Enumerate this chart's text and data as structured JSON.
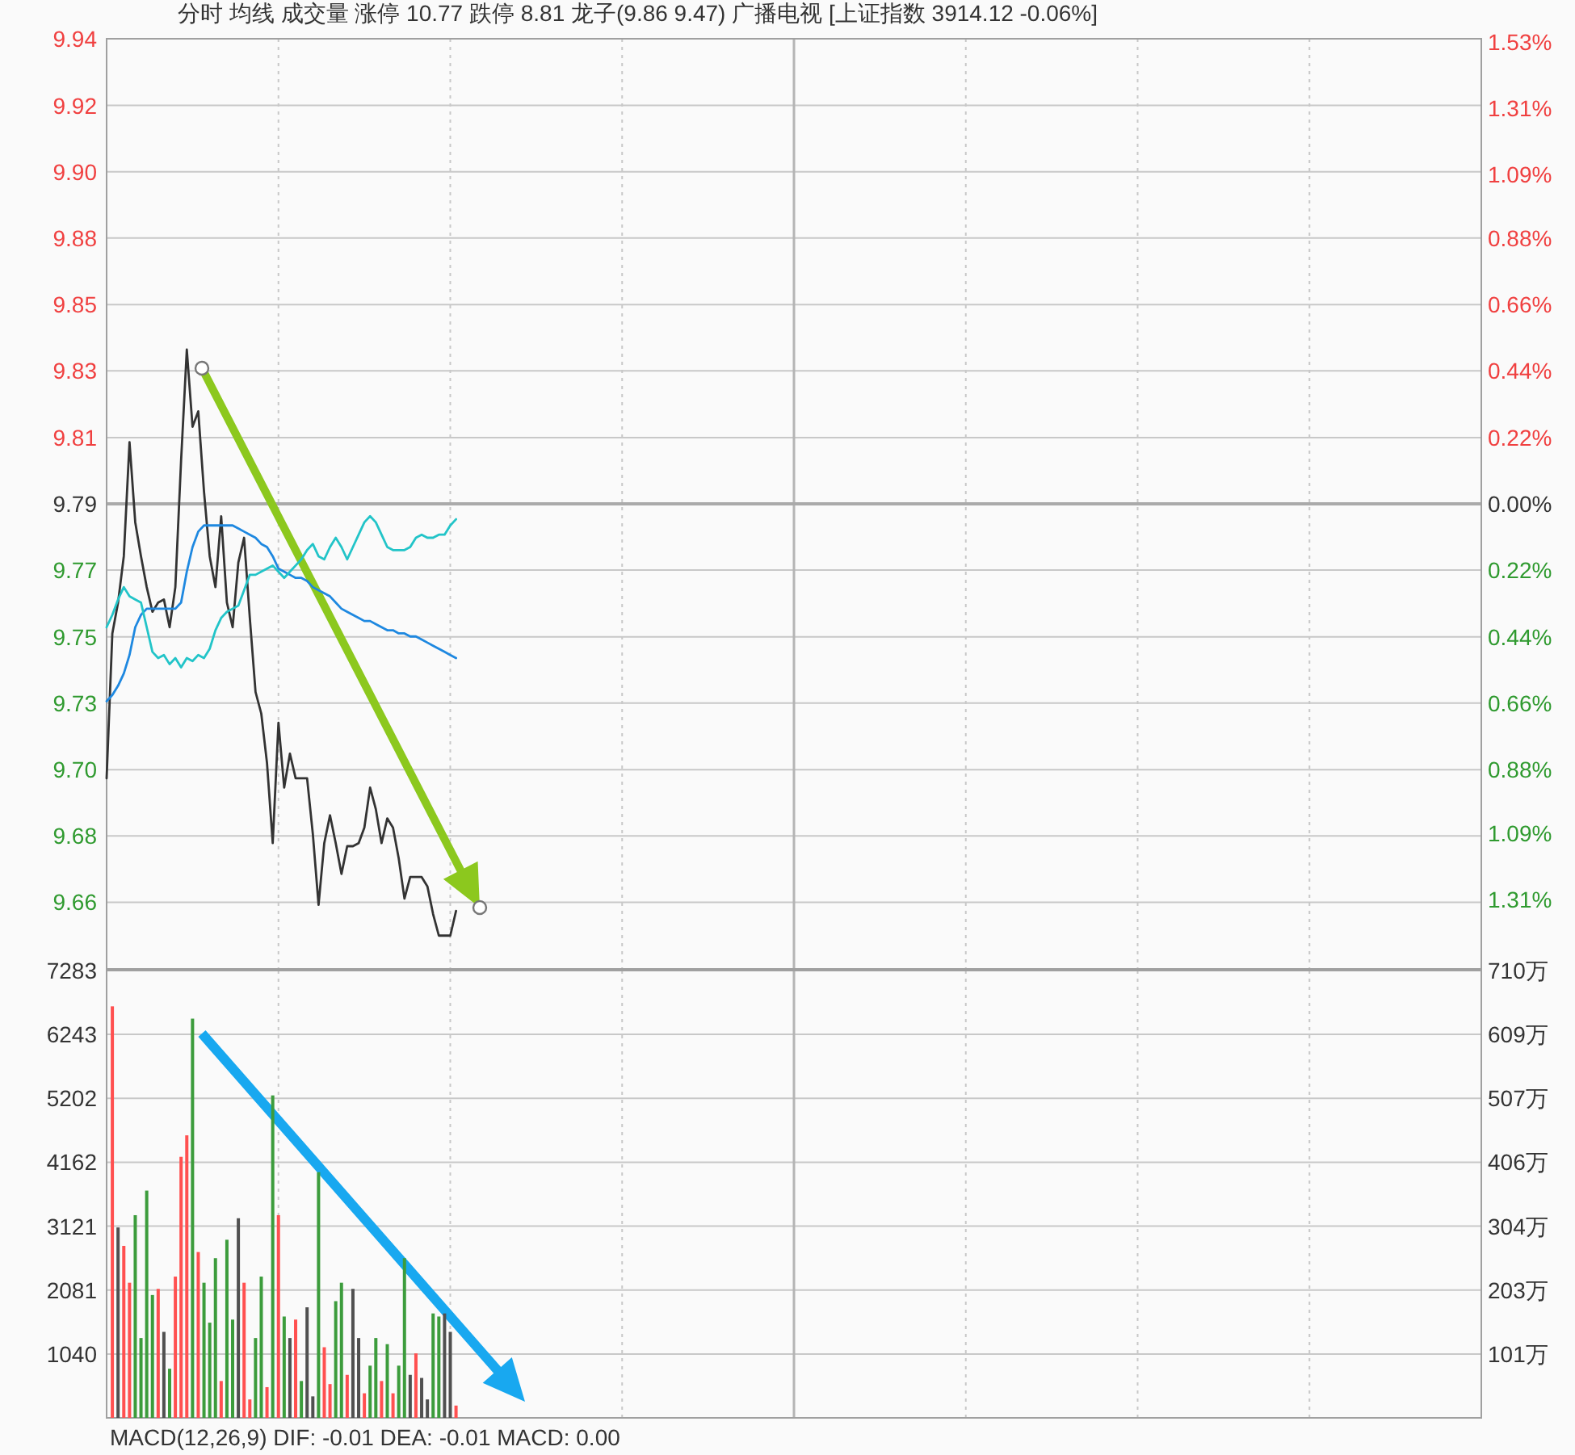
{
  "chart_data": [
    {
      "type": "line",
      "title": "分时  均线  成交量  涨停 10.77  跌停 8.81  龙子(9.86 9.47)  广播电视  [上证指数 3914.12 -0.06%]",
      "categories": [
        null,
        null,
        null,
        null,
        null,
        null,
        null,
        null,
        null,
        null,
        null,
        null,
        null,
        null,
        null,
        null,
        null,
        null,
        null,
        null,
        null,
        null,
        null,
        null,
        null,
        null,
        null,
        null,
        null,
        null,
        null,
        null,
        null,
        null,
        null,
        null,
        null,
        null,
        null,
        null,
        null,
        null,
        null,
        null,
        null,
        null,
        null,
        null,
        null,
        null,
        null,
        null,
        null,
        null,
        null,
        null,
        null,
        null,
        null,
        null,
        null,
        null,
        null,
        null,
        null,
        null,
        null,
        null,
        null,
        null,
        null,
        null,
        null,
        null,
        null,
        null,
        null,
        null,
        null,
        null,
        null,
        null,
        null,
        null,
        null,
        null,
        null,
        null,
        null,
        null,
        null,
        null,
        null,
        null,
        null,
        null,
        null,
        null,
        null,
        null,
        null,
        null,
        null,
        null,
        null,
        null,
        null,
        null,
        null,
        null,
        null,
        null,
        null,
        null,
        null,
        null,
        null,
        null,
        null,
        null,
        null,
        null,
        null,
        null,
        null,
        null,
        null,
        null,
        null,
        null,
        null,
        null,
        null,
        null,
        null,
        null,
        null,
        null,
        null,
        null,
        null,
        null,
        null,
        null,
        null,
        null,
        null,
        null,
        null,
        null,
        null,
        null,
        null,
        null,
        null,
        null,
        null,
        null,
        null,
        null,
        null,
        null,
        null,
        null,
        null,
        null,
        null,
        null,
        null,
        null,
        null,
        null,
        null,
        null,
        null,
        null,
        null,
        null,
        null,
        null,
        null,
        null,
        null,
        null,
        null,
        null,
        null,
        null,
        null,
        null,
        null,
        null,
        null,
        null,
        null,
        null,
        null,
        null,
        null,
        null,
        null,
        null,
        null,
        null,
        null,
        null,
        null,
        null,
        null,
        null,
        null,
        null,
        null,
        null,
        null,
        null,
        null,
        null,
        null,
        null,
        null,
        null,
        null,
        null,
        null,
        null,
        null,
        null,
        null,
        null,
        null,
        null,
        null,
        null,
        null,
        null,
        null,
        null,
        null,
        null,
        null
      ],
      "series": [
        {
          "color": "#333333",
          "values": [
            9.701,
            9.748,
            9.758,
            9.773,
            9.81,
            9.784,
            9.773,
            9.763,
            9.755,
            9.758,
            9.759,
            9.75,
            9.763,
            9.804,
            9.84,
            9.815,
            9.82,
            9.794,
            9.773,
            9.763,
            9.786,
            9.758,
            9.75,
            9.771,
            9.779,
            9.753,
            9.729,
            9.722,
            9.706,
            9.68,
            9.719,
            9.698,
            9.709,
            9.701,
            9.701,
            9.701,
            9.683,
            9.66,
            9.68,
            9.689,
            9.68,
            9.67,
            9.679,
            9.679,
            9.68,
            9.685,
            9.698,
            9.691,
            9.68,
            9.688,
            9.685,
            9.675,
            9.662,
            9.669,
            9.669,
            9.669,
            9.666,
            9.657,
            9.65,
            9.65,
            9.65,
            9.658,
            null,
            null,
            null,
            null,
            null,
            null,
            null,
            null,
            null,
            null,
            null,
            null,
            null,
            null,
            null,
            null,
            null,
            null,
            null,
            null,
            null,
            null,
            null,
            null,
            null,
            null,
            null,
            null,
            null,
            null,
            null,
            null,
            null,
            null,
            null,
            null,
            null,
            null,
            null,
            null,
            null,
            null,
            null,
            null,
            null,
            null,
            null,
            null,
            null,
            null,
            null,
            null,
            null,
            null,
            null,
            null,
            null,
            null,
            null,
            null,
            null,
            null,
            null,
            null,
            null,
            null,
            null,
            null,
            null,
            null,
            null,
            null,
            null,
            null,
            null,
            null,
            null,
            null,
            null,
            null,
            null,
            null,
            null,
            null,
            null,
            null,
            null,
            null,
            null,
            null,
            null,
            null,
            null,
            null,
            null,
            null,
            null,
            null,
            null,
            null,
            null,
            null,
            null,
            null,
            null,
            null,
            null,
            null,
            null,
            null,
            null,
            null,
            null,
            null,
            null,
            null,
            null,
            null,
            null,
            null,
            null,
            null,
            null,
            null,
            null,
            null,
            null,
            null,
            null,
            null,
            null,
            null,
            null,
            null,
            null,
            null,
            null,
            null,
            null,
            null,
            null,
            null,
            null,
            null,
            null,
            null,
            null,
            null,
            null,
            null,
            null,
            null,
            null,
            null,
            null,
            null,
            null,
            null,
            null,
            null,
            null,
            null,
            null,
            null,
            null,
            null,
            null,
            null,
            null,
            null,
            null,
            null,
            null,
            null,
            null,
            null,
            null,
            null,
            null
          ]
        },
        {
          "color": "#1e88e0",
          "values": [
            9.726,
            9.728,
            9.731,
            9.735,
            9.741,
            9.75,
            9.754,
            9.756,
            9.756,
            9.756,
            9.756,
            9.756,
            9.756,
            9.758,
            9.768,
            9.776,
            9.781,
            9.783,
            9.783,
            9.783,
            9.783,
            9.783,
            9.783,
            9.782,
            9.781,
            9.78,
            9.779,
            9.777,
            9.776,
            9.773,
            9.769,
            9.768,
            9.767,
            9.766,
            9.766,
            9.765,
            9.763,
            9.762,
            9.761,
            9.76,
            9.758,
            9.756,
            9.755,
            9.754,
            9.753,
            9.752,
            9.752,
            9.751,
            9.75,
            9.749,
            9.749,
            9.748,
            9.748,
            9.747,
            9.747,
            9.746,
            9.745,
            9.744,
            9.743,
            9.742,
            9.741,
            9.74,
            null,
            null,
            null,
            null,
            null,
            null,
            null,
            null,
            null,
            null,
            null,
            null,
            null,
            null,
            null,
            null,
            null,
            null,
            null,
            null,
            null,
            null,
            null,
            null,
            null,
            null,
            null,
            null,
            null,
            null,
            null,
            null,
            null,
            null,
            null,
            null,
            null,
            null,
            null,
            null,
            null,
            null,
            null,
            null,
            null,
            null,
            null,
            null,
            null,
            null,
            null,
            null,
            null,
            null,
            null,
            null,
            null,
            null,
            null,
            null,
            null,
            null,
            null,
            null,
            null,
            null,
            null,
            null,
            null,
            null,
            null,
            null,
            null,
            null,
            null,
            null,
            null,
            null,
            null,
            null,
            null,
            null,
            null,
            null,
            null,
            null,
            null,
            null,
            null,
            null,
            null,
            null,
            null,
            null,
            null,
            null,
            null,
            null,
            null,
            null,
            null,
            null,
            null,
            null,
            null,
            null,
            null,
            null,
            null,
            null,
            null,
            null,
            null,
            null,
            null,
            null,
            null,
            null,
            null,
            null,
            null,
            null,
            null,
            null,
            null,
            null,
            null,
            null,
            null,
            null,
            null,
            null,
            null,
            null,
            null,
            null,
            null,
            null,
            null,
            null,
            null,
            null,
            null,
            null,
            null,
            null,
            null,
            null,
            null,
            null,
            null,
            null,
            null,
            null,
            null,
            null,
            null,
            null,
            null,
            null,
            null,
            null,
            null,
            null,
            null,
            null,
            null,
            null,
            null,
            null,
            null,
            null,
            null,
            null,
            null,
            null,
            null,
            null,
            null
          ]
        },
        {
          "color": "#22c4c8",
          "values": [
            9.75,
            9.754,
            9.759,
            9.763,
            9.76,
            9.759,
            9.758,
            9.75,
            9.742,
            9.74,
            9.741,
            9.738,
            9.74,
            9.737,
            9.74,
            9.739,
            9.741,
            9.74,
            9.743,
            9.749,
            9.753,
            9.755,
            9.756,
            9.757,
            9.762,
            9.767,
            9.767,
            9.768,
            9.769,
            9.77,
            9.768,
            9.766,
            9.768,
            9.77,
            9.772,
            9.775,
            9.777,
            9.773,
            9.772,
            9.776,
            9.779,
            9.776,
            9.772,
            9.776,
            9.78,
            9.784,
            9.786,
            9.784,
            9.78,
            9.776,
            9.775,
            9.775,
            9.775,
            9.776,
            9.779,
            9.78,
            9.779,
            9.779,
            9.78,
            9.78,
            9.783,
            9.785,
            null,
            null,
            null,
            null,
            null,
            null,
            null,
            null,
            null,
            null,
            null,
            null,
            null,
            null,
            null,
            null,
            null,
            null,
            null,
            null,
            null,
            null,
            null,
            null,
            null,
            null,
            null,
            null,
            null,
            null,
            null,
            null,
            null,
            null,
            null,
            null,
            null,
            null,
            null,
            null,
            null,
            null,
            null,
            null,
            null,
            null,
            null,
            null,
            null,
            null,
            null,
            null,
            null,
            null,
            null,
            null,
            null,
            null,
            null,
            null,
            null,
            null,
            null,
            null,
            null,
            null,
            null,
            null,
            null,
            null,
            null,
            null,
            null,
            null,
            null,
            null,
            null,
            null,
            null,
            null,
            null,
            null,
            null,
            null,
            null,
            null,
            null,
            null,
            null,
            null,
            null,
            null,
            null,
            null,
            null,
            null,
            null,
            null,
            null,
            null,
            null,
            null,
            null,
            null,
            null,
            null,
            null,
            null,
            null,
            null,
            null,
            null,
            null,
            null,
            null,
            null,
            null,
            null,
            null,
            null,
            null,
            null,
            null,
            null,
            null,
            null,
            null,
            null,
            null,
            null,
            null,
            null,
            null,
            null,
            null,
            null,
            null,
            null,
            null,
            null,
            null,
            null,
            null,
            null,
            null,
            null,
            null,
            null,
            null,
            null,
            null,
            null,
            null,
            null,
            null,
            null,
            null,
            null,
            null,
            null,
            null,
            null,
            null,
            null,
            null,
            null,
            null,
            null,
            null,
            null,
            null,
            null,
            null,
            null,
            null,
            null,
            null,
            null,
            null
          ]
        }
      ],
      "ylim": [
        9.6392,
        9.9408
      ],
      "yticks": [
        {
          "value": 9.6608,
          "label": "9.66"
        },
        {
          "value": 9.6823,
          "label": "9.68"
        },
        {
          "value": 9.7038,
          "label": "9.70"
        },
        {
          "value": 9.7254,
          "label": "9.73"
        },
        {
          "value": 9.7469,
          "label": "9.75"
        },
        {
          "value": 9.7685,
          "label": "9.77"
        },
        {
          "value": 9.79,
          "label": "9.79"
        },
        {
          "value": 9.8115,
          "label": "9.81"
        },
        {
          "value": 9.8331,
          "label": "9.83"
        },
        {
          "value": 9.8546,
          "label": "9.85"
        },
        {
          "value": 9.8762,
          "label": "9.88"
        },
        {
          "value": 9.8977,
          "label": "9.90"
        },
        {
          "value": 9.9192,
          "label": "9.92"
        },
        {
          "value": 9.9408,
          "label": "9.94"
        }
      ],
      "y2lim": [
        -1.54,
        1.54
      ],
      "y2ticks": [
        {
          "value": -1.31,
          "label": "1.31%"
        },
        {
          "value": -1.09,
          "label": "1.09%"
        },
        {
          "value": -0.88,
          "label": "0.88%"
        },
        {
          "value": -0.66,
          "label": "0.66%"
        },
        {
          "value": -0.44,
          "label": "0.44%"
        },
        {
          "value": -0.22,
          "label": "0.22%"
        },
        {
          "value": 0,
          "label": "0.00%"
        },
        {
          "value": 0.22,
          "label": "0.22%"
        },
        {
          "value": 0.44,
          "label": "0.44%"
        },
        {
          "value": 0.66,
          "label": "0.66%"
        },
        {
          "value": 0.88,
          "label": "0.88%"
        },
        {
          "value": 1.09,
          "label": "1.09%"
        },
        {
          "value": 1.31,
          "label": "1.31%"
        },
        {
          "value": 1.53,
          "label": "1.53%"
        }
      ],
      "ref_lines": [
        {
          "axis": "y2",
          "value": 0
        }
      ],
      "grid": true
    },
    {
      "type": "bar",
      "annotations": [
        "MACD(12,26,9)  DIF: -0.01  DEA: -0.01  MACD: 0.00"
      ],
      "categories": [
        null,
        null,
        null,
        null,
        null,
        null,
        null,
        null,
        null,
        null,
        null,
        null,
        null,
        null,
        null,
        null,
        null,
        null,
        null,
        null,
        null,
        null,
        null,
        null,
        null,
        null,
        null,
        null,
        null,
        null,
        null,
        null,
        null,
        null,
        null,
        null,
        null,
        null,
        null,
        null,
        null,
        null,
        null,
        null,
        null,
        null,
        null,
        null,
        null,
        null,
        null,
        null,
        null,
        null,
        null,
        null,
        null,
        null,
        null,
        null,
        null,
        null,
        null,
        null,
        null,
        null,
        null,
        null,
        null,
        null,
        null,
        null,
        null,
        null,
        null,
        null,
        null,
        null,
        null,
        null,
        null,
        null,
        null,
        null,
        null,
        null,
        null,
        null,
        null,
        null,
        null,
        null,
        null,
        null,
        null,
        null,
        null,
        null,
        null,
        null,
        null,
        null,
        null,
        null,
        null,
        null,
        null,
        null,
        null,
        null,
        null,
        null,
        null,
        null,
        null,
        null,
        null,
        null,
        null,
        null,
        null,
        null,
        null,
        null,
        null,
        null,
        null,
        null,
        null,
        null,
        null,
        null,
        null,
        null,
        null,
        null,
        null,
        null,
        null,
        null,
        null,
        null,
        null,
        null,
        null,
        null,
        null,
        null,
        null,
        null,
        null,
        null,
        null,
        null,
        null,
        null,
        null,
        null,
        null,
        null,
        null,
        null,
        null,
        null,
        null,
        null,
        null,
        null,
        null,
        null,
        null,
        null,
        null,
        null,
        null,
        null,
        null,
        null,
        null,
        null,
        null,
        null,
        null,
        null,
        null,
        null,
        null,
        null,
        null,
        null,
        null,
        null,
        null,
        null,
        null,
        null,
        null,
        null,
        null,
        null,
        null,
        null,
        null,
        null,
        null,
        null,
        null,
        null,
        null,
        null,
        null,
        null,
        null,
        null,
        null,
        null,
        null,
        null,
        null,
        null,
        null,
        null,
        null,
        null,
        null,
        null,
        null,
        null,
        null,
        null,
        null,
        null,
        null,
        null,
        null,
        null,
        null,
        null,
        null,
        null,
        null
      ],
      "values": [
        null,
        6700,
        3100,
        2800,
        2200,
        3300,
        1300,
        3700,
        2000,
        2100,
        1400,
        800,
        2300,
        4250,
        4600,
        6500,
        2700,
        2200,
        1550,
        2600,
        600,
        2900,
        1600,
        3250,
        2200,
        300,
        1300,
        2300,
        500,
        5250,
        3300,
        1650,
        1300,
        1600,
        600,
        1800,
        350,
        4000,
        1150,
        550,
        1900,
        2200,
        700,
        2100,
        1300,
        400,
        850,
        1300,
        600,
        1200,
        400,
        850,
        2600,
        700,
        1050,
        650,
        300,
        1700,
        1650,
        1700,
        1400,
        200,
        null,
        null,
        null,
        null,
        null,
        null,
        null,
        null,
        null,
        null,
        null,
        null,
        null,
        null,
        null,
        null,
        null,
        null,
        null,
        null,
        null,
        null,
        null,
        null,
        null,
        null,
        null,
        null,
        null,
        null,
        null,
        null,
        null,
        null,
        null,
        null,
        null,
        null,
        null,
        null,
        null,
        null,
        null,
        null,
        null,
        null,
        null,
        null,
        null,
        null,
        null,
        null,
        null,
        null,
        null,
        null,
        null,
        null,
        null,
        null,
        null,
        null,
        null,
        null,
        null,
        null,
        null,
        null,
        null,
        null,
        null,
        null,
        null,
        null,
        null,
        null,
        null,
        null,
        null,
        null,
        null,
        null,
        null,
        null,
        null,
        null,
        null,
        null,
        null,
        null,
        null,
        null,
        null,
        null,
        null,
        null,
        null,
        null,
        null,
        null,
        null,
        null,
        null,
        null,
        null,
        null,
        null,
        null,
        null,
        null,
        null,
        null,
        null,
        null,
        null,
        null,
        null,
        null,
        null,
        null,
        null,
        null,
        null,
        null,
        null,
        null,
        null,
        null,
        null,
        null,
        null,
        null,
        null,
        null,
        null,
        null,
        null,
        null,
        null,
        null,
        null,
        null,
        null,
        null,
        null,
        null,
        null,
        null,
        null,
        null,
        null,
        null,
        null,
        null,
        null,
        null,
        null,
        null,
        null,
        null,
        null,
        null,
        null,
        null,
        null,
        null,
        null,
        null,
        null,
        null,
        null,
        null,
        null,
        null,
        null,
        null,
        null,
        null,
        null
      ],
      "colors": [
        null,
        "#ff5050",
        "#505050",
        "#ff5050",
        "#ff5050",
        "#3c9c3c",
        "#3c9c3c",
        "#3c9c3c",
        "#3c9c3c",
        "#ff5050",
        "#505050",
        "#3c9c3c",
        "#ff5050",
        "#ff5050",
        "#ff5050",
        "#3c9c3c",
        "#ff5050",
        "#3c9c3c",
        "#3c9c3c",
        "#3c9c3c",
        "#ff5050",
        "#3c9c3c",
        "#3c9c3c",
        "#505050",
        "#ff5050",
        "#ff5050",
        "#3c9c3c",
        "#3c9c3c",
        "#ff5050",
        "#3c9c3c",
        "#ff5050",
        "#3c9c3c",
        "#505050",
        "#ff5050",
        "#3c9c3c",
        "#505050",
        "#505050",
        "#3c9c3c",
        "#ff5050",
        "#ff5050",
        "#3c9c3c",
        "#3c9c3c",
        "#ff5050",
        "#505050",
        "#505050",
        "#ff5050",
        "#3c9c3c",
        "#3c9c3c",
        "#ff5050",
        "#3c9c3c",
        "#ff5050",
        "#3c9c3c",
        "#3c9c3c",
        "#505050",
        "#ff5050",
        "#505050",
        "#505050",
        "#3c9c3c",
        "#3c9c3c",
        "#505050",
        "#505050",
        "#ff5050",
        null,
        null,
        null,
        null,
        null,
        null,
        null,
        null,
        null,
        null,
        null,
        null,
        null,
        null,
        null,
        null,
        null,
        null,
        null,
        null,
        null,
        null,
        null,
        null,
        null,
        null,
        null,
        null,
        null,
        null,
        null,
        null,
        null,
        null,
        null,
        null,
        null,
        null,
        null,
        null,
        null,
        null,
        null,
        null,
        null,
        null,
        null,
        null,
        null,
        null,
        null,
        null,
        null,
        null,
        null,
        null,
        null,
        null,
        null,
        null,
        null,
        null,
        null,
        null,
        null,
        null,
        null,
        null,
        null,
        null,
        null,
        null,
        null,
        null,
        null,
        null,
        null,
        null,
        null,
        null,
        null,
        null,
        null,
        null,
        null,
        null,
        null,
        null,
        null,
        null,
        null,
        null,
        null,
        null,
        null,
        null,
        null,
        null,
        null,
        null,
        null,
        null,
        null,
        null,
        null,
        null,
        null,
        null,
        null,
        null,
        null,
        null,
        null,
        null,
        null,
        null,
        null,
        null,
        null,
        null,
        null,
        null,
        null,
        null,
        null,
        null,
        null,
        null,
        null,
        null,
        null,
        null,
        null,
        null,
        null,
        null,
        null,
        null,
        null,
        null,
        null,
        null,
        null,
        null,
        null,
        null,
        null,
        null,
        null,
        null,
        null,
        null,
        null,
        null,
        null,
        null,
        null,
        null,
        null,
        null,
        null,
        null,
        null,
        null,
        null,
        null,
        null,
        null,
        null,
        null,
        null,
        null,
        null,
        null,
        null,
        null,
        null,
        null,
        null
      ],
      "ylim": [
        0,
        7283
      ],
      "yticks": [
        1040,
        2081,
        3121,
        4162,
        5202,
        6243,
        7283
      ],
      "y2lim": [
        0,
        710
      ],
      "y2ticks": [
        {
          "value": 101,
          "label": "101万"
        },
        {
          "value": 203,
          "label": "203万"
        },
        {
          "value": 304,
          "label": "304万"
        },
        {
          "value": 406,
          "label": "406万"
        },
        {
          "value": 507,
          "label": "507万"
        },
        {
          "value": 609,
          "label": "609万"
        },
        {
          "value": 710,
          "label": "710万"
        }
      ],
      "grid": true
    }
  ]
}
